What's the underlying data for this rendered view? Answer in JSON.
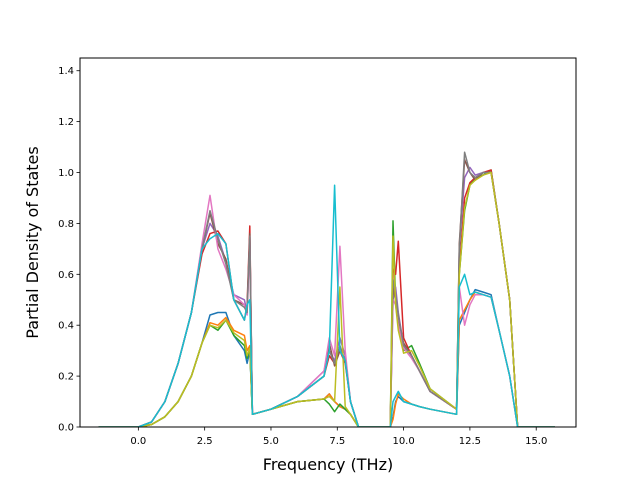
{
  "chart_data": {
    "type": "line",
    "xlabel": "Frequency (THz)",
    "ylabel": "Partial Density of States",
    "xlim": [
      -2.2,
      16.5
    ],
    "ylim": [
      0.0,
      1.45
    ],
    "xticks": [
      0.0,
      2.5,
      5.0,
      7.5,
      10.0,
      12.5,
      15.0
    ],
    "xtick_labels": [
      "0.0",
      "2.5",
      "5.0",
      "7.5",
      "10.0",
      "12.5",
      "15.0"
    ],
    "yticks": [
      0.0,
      0.2,
      0.4,
      0.6,
      0.8,
      1.0,
      1.2,
      1.4
    ],
    "ytick_labels": [
      "0.0",
      "0.2",
      "0.4",
      "0.6",
      "0.8",
      "1.0",
      "1.2",
      "1.4"
    ],
    "grid": false,
    "legend": "none",
    "colors": [
      "#1f77b4",
      "#ff7f0e",
      "#2ca02c",
      "#d62728",
      "#9467bd",
      "#8c564b",
      "#e377c2",
      "#7f7f7f",
      "#bcbd22",
      "#17becf"
    ],
    "series": [
      {
        "color": "#1f77b4",
        "x": [
          -1.5,
          0,
          0.5,
          1,
          1.5,
          2,
          2.4,
          2.7,
          3,
          3.3,
          3.6,
          4.0,
          4.1,
          4.2,
          4.3,
          5,
          6,
          7,
          7.2,
          7.4,
          7.6,
          7.8,
          8,
          8.3,
          9.5,
          9.6,
          9.7,
          9.8,
          10,
          10.3,
          10.6,
          11,
          12,
          12.1,
          12.3,
          12.5,
          12.7,
          13,
          13.3,
          13.6,
          14,
          14.3,
          15.7
        ],
        "y": [
          0,
          0,
          0.01,
          0.04,
          0.1,
          0.2,
          0.33,
          0.44,
          0.45,
          0.45,
          0.36,
          0.3,
          0.25,
          0.3,
          0.05,
          0.07,
          0.1,
          0.11,
          0.13,
          0.1,
          0.08,
          0.07,
          0.05,
          0.0,
          0.0,
          0.04,
          0.1,
          0.12,
          0.1,
          0.09,
          0.08,
          0.07,
          0.05,
          0.4,
          0.45,
          0.5,
          0.54,
          0.53,
          0.52,
          0.38,
          0.2,
          0.0,
          0.0
        ]
      },
      {
        "color": "#ff7f0e",
        "x": [
          -1.5,
          0,
          0.5,
          1,
          1.5,
          2,
          2.4,
          2.7,
          3,
          3.3,
          3.6,
          4.0,
          4.1,
          4.2,
          4.3,
          5,
          6,
          7,
          7.2,
          7.4,
          7.6,
          7.8,
          8,
          8.3,
          9.5,
          9.6,
          9.7,
          9.8,
          10,
          10.3,
          10.6,
          11,
          12,
          12.1,
          12.3,
          12.5,
          12.7,
          13,
          13.3,
          13.6,
          14,
          14.3,
          15.7
        ],
        "y": [
          0,
          0,
          0.01,
          0.04,
          0.1,
          0.2,
          0.33,
          0.41,
          0.4,
          0.43,
          0.38,
          0.36,
          0.3,
          0.32,
          0.05,
          0.07,
          0.1,
          0.11,
          0.13,
          0.1,
          0.08,
          0.07,
          0.05,
          0.0,
          0.0,
          0.03,
          0.09,
          0.13,
          0.11,
          0.09,
          0.08,
          0.07,
          0.05,
          0.42,
          0.46,
          0.5,
          0.53,
          0.52,
          0.51,
          0.38,
          0.2,
          0.0,
          0.0
        ]
      },
      {
        "color": "#2ca02c",
        "x": [
          -1.5,
          0,
          0.5,
          1,
          1.5,
          2,
          2.4,
          2.7,
          3,
          3.3,
          3.6,
          4.0,
          4.1,
          4.2,
          4.3,
          5,
          6,
          7,
          7.2,
          7.4,
          7.6,
          7.8,
          8,
          8.3,
          9.5,
          9.6,
          9.7,
          9.8,
          10,
          10.3,
          10.6,
          11,
          12,
          12.1,
          12.3,
          12.5,
          12.7,
          13,
          13.3,
          13.6,
          14,
          14.3,
          15.7
        ],
        "y": [
          0,
          0,
          0.01,
          0.04,
          0.1,
          0.2,
          0.33,
          0.4,
          0.38,
          0.42,
          0.36,
          0.32,
          0.27,
          0.31,
          0.05,
          0.07,
          0.1,
          0.11,
          0.09,
          0.06,
          0.09,
          0.07,
          0.05,
          0.0,
          0.0,
          0.81,
          0.5,
          0.4,
          0.3,
          0.32,
          0.25,
          0.15,
          0.07,
          0.6,
          0.85,
          0.95,
          0.98,
          0.99,
          1.01,
          0.8,
          0.5,
          0.0,
          0.0
        ]
      },
      {
        "color": "#d62728",
        "x": [
          -1.5,
          0,
          0.5,
          1,
          1.5,
          2,
          2.4,
          2.7,
          3,
          3.3,
          3.6,
          4.0,
          4.1,
          4.2,
          4.3,
          5,
          6,
          7,
          7.2,
          7.4,
          7.6,
          7.8,
          8,
          8.3,
          9.5,
          9.6,
          9.7,
          9.8,
          10,
          10.3,
          10.6,
          11,
          12,
          12.1,
          12.3,
          12.5,
          12.7,
          13,
          13.3,
          13.6,
          14,
          14.3,
          15.7
        ],
        "y": [
          0,
          0,
          0.02,
          0.1,
          0.25,
          0.45,
          0.68,
          0.76,
          0.77,
          0.72,
          0.5,
          0.42,
          0.48,
          0.79,
          0.05,
          0.07,
          0.12,
          0.2,
          0.28,
          0.25,
          0.3,
          0.25,
          0.1,
          0.0,
          0.0,
          0.62,
          0.6,
          0.73,
          0.35,
          0.28,
          0.22,
          0.14,
          0.07,
          0.62,
          0.9,
          0.96,
          0.98,
          1.0,
          1.01,
          0.8,
          0.5,
          0.0,
          0.0
        ]
      },
      {
        "color": "#9467bd",
        "x": [
          -1.5,
          0,
          0.5,
          1,
          1.5,
          2,
          2.4,
          2.7,
          3,
          3.3,
          3.6,
          4.0,
          4.1,
          4.2,
          4.3,
          5,
          6,
          7,
          7.2,
          7.4,
          7.6,
          7.8,
          8,
          8.3,
          9.5,
          9.6,
          9.7,
          9.8,
          10,
          10.3,
          10.6,
          11,
          12,
          12.1,
          12.3,
          12.5,
          12.7,
          13,
          13.3,
          13.6,
          14,
          14.3,
          15.7
        ],
        "y": [
          0,
          0,
          0.02,
          0.1,
          0.25,
          0.45,
          0.7,
          0.8,
          0.75,
          0.65,
          0.52,
          0.5,
          0.45,
          0.75,
          0.05,
          0.07,
          0.12,
          0.22,
          0.3,
          0.26,
          0.35,
          0.28,
          0.1,
          0.0,
          0.0,
          0.5,
          0.55,
          0.45,
          0.32,
          0.28,
          0.22,
          0.14,
          0.07,
          0.7,
          0.98,
          1.02,
          0.99,
          1.0,
          1.0,
          0.8,
          0.5,
          0.0,
          0.0
        ]
      },
      {
        "color": "#8c564b",
        "x": [
          -1.5,
          0,
          0.5,
          1,
          1.5,
          2,
          2.4,
          2.7,
          3,
          3.3,
          3.6,
          4.0,
          4.1,
          4.2,
          4.3,
          5,
          6,
          7,
          7.2,
          7.4,
          7.6,
          7.8,
          8,
          8.3,
          9.5,
          9.6,
          9.7,
          9.8,
          10,
          10.3,
          10.6,
          11,
          12,
          12.1,
          12.3,
          12.5,
          12.7,
          13,
          13.3,
          13.6,
          14,
          14.3,
          15.7
        ],
        "y": [
          0,
          0,
          0.02,
          0.1,
          0.25,
          0.45,
          0.7,
          0.84,
          0.72,
          0.66,
          0.5,
          0.48,
          0.46,
          0.76,
          0.05,
          0.07,
          0.12,
          0.2,
          0.33,
          0.24,
          0.3,
          0.26,
          0.1,
          0.0,
          0.0,
          0.55,
          0.5,
          0.42,
          0.33,
          0.28,
          0.22,
          0.14,
          0.07,
          0.72,
          1.05,
          1.0,
          0.97,
          1.0,
          1.0,
          0.8,
          0.5,
          0.0,
          0.0
        ]
      },
      {
        "color": "#e377c2",
        "x": [
          -1.5,
          0,
          0.5,
          1,
          1.5,
          2,
          2.4,
          2.7,
          3,
          3.3,
          3.6,
          4.0,
          4.1,
          4.2,
          4.3,
          5,
          6,
          7,
          7.2,
          7.4,
          7.6,
          7.8,
          8,
          8.3,
          9.5,
          9.6,
          9.7,
          9.8,
          10,
          10.3,
          10.6,
          11,
          12,
          12.1,
          12.3,
          12.5,
          12.7,
          13,
          13.3,
          13.6,
          14,
          14.3,
          15.7
        ],
        "y": [
          0,
          0,
          0.02,
          0.1,
          0.25,
          0.45,
          0.72,
          0.91,
          0.7,
          0.62,
          0.52,
          0.48,
          0.44,
          0.72,
          0.05,
          0.07,
          0.12,
          0.22,
          0.35,
          0.28,
          0.71,
          0.3,
          0.1,
          0.0,
          0.0,
          0.5,
          0.48,
          0.4,
          0.31,
          0.27,
          0.22,
          0.14,
          0.07,
          0.55,
          0.4,
          0.48,
          0.52,
          0.52,
          0.51,
          0.38,
          0.2,
          0.0,
          0.0
        ]
      },
      {
        "color": "#7f7f7f",
        "x": [
          -1.5,
          0,
          0.5,
          1,
          1.5,
          2,
          2.4,
          2.7,
          3,
          3.3,
          3.6,
          4.0,
          4.1,
          4.2,
          4.3,
          5,
          6,
          7,
          7.2,
          7.4,
          7.6,
          7.8,
          8,
          8.3,
          9.5,
          9.6,
          9.7,
          9.8,
          10,
          10.3,
          10.6,
          11,
          12,
          12.1,
          12.3,
          12.5,
          12.7,
          13,
          13.3,
          13.6,
          14,
          14.3,
          15.7
        ],
        "y": [
          0,
          0,
          0.02,
          0.1,
          0.25,
          0.45,
          0.7,
          0.85,
          0.74,
          0.64,
          0.5,
          0.47,
          0.45,
          0.75,
          0.05,
          0.07,
          0.12,
          0.2,
          0.3,
          0.25,
          0.32,
          0.26,
          0.1,
          0.0,
          0.0,
          0.58,
          0.52,
          0.44,
          0.32,
          0.28,
          0.22,
          0.14,
          0.07,
          0.7,
          1.08,
          1.0,
          0.98,
          1.0,
          1.0,
          0.8,
          0.5,
          0.0,
          0.0
        ]
      },
      {
        "color": "#bcbd22",
        "x": [
          -1.5,
          0,
          0.5,
          1,
          1.5,
          2,
          2.4,
          2.7,
          3,
          3.3,
          3.6,
          4.0,
          4.1,
          4.2,
          4.3,
          5,
          6,
          7,
          7.2,
          7.4,
          7.6,
          7.8,
          8,
          8.3,
          9.5,
          9.6,
          9.7,
          9.8,
          10,
          10.3,
          10.6,
          11,
          12,
          12.1,
          12.3,
          12.5,
          12.7,
          13,
          13.3,
          13.6,
          14,
          14.3,
          15.7
        ],
        "y": [
          0,
          0,
          0.01,
          0.04,
          0.1,
          0.2,
          0.33,
          0.4,
          0.39,
          0.42,
          0.37,
          0.34,
          0.28,
          0.31,
          0.05,
          0.07,
          0.1,
          0.11,
          0.12,
          0.1,
          0.55,
          0.08,
          0.05,
          0.0,
          0.0,
          0.75,
          0.48,
          0.38,
          0.29,
          0.3,
          0.24,
          0.15,
          0.07,
          0.6,
          0.86,
          0.95,
          0.97,
          0.99,
          1.0,
          0.8,
          0.5,
          0.0,
          0.0
        ]
      },
      {
        "color": "#17becf",
        "x": [
          -1.5,
          0,
          0.5,
          1,
          1.5,
          2,
          2.4,
          2.7,
          3,
          3.3,
          3.6,
          4.0,
          4.1,
          4.2,
          4.3,
          5,
          6,
          7,
          7.2,
          7.4,
          7.6,
          7.8,
          8,
          8.3,
          9.5,
          9.6,
          9.7,
          9.8,
          10,
          10.3,
          10.6,
          11,
          12,
          12.1,
          12.3,
          12.5,
          12.7,
          13,
          13.3,
          13.6,
          14,
          14.3,
          15.7
        ],
        "y": [
          0,
          0,
          0.02,
          0.1,
          0.25,
          0.45,
          0.7,
          0.74,
          0.76,
          0.72,
          0.5,
          0.42,
          0.48,
          0.5,
          0.05,
          0.07,
          0.12,
          0.2,
          0.3,
          0.95,
          0.3,
          0.26,
          0.1,
          0.0,
          0.0,
          0.1,
          0.12,
          0.14,
          0.1,
          0.09,
          0.08,
          0.07,
          0.05,
          0.55,
          0.6,
          0.52,
          0.53,
          0.52,
          0.51,
          0.38,
          0.2,
          0.0,
          0.0
        ]
      }
    ]
  }
}
